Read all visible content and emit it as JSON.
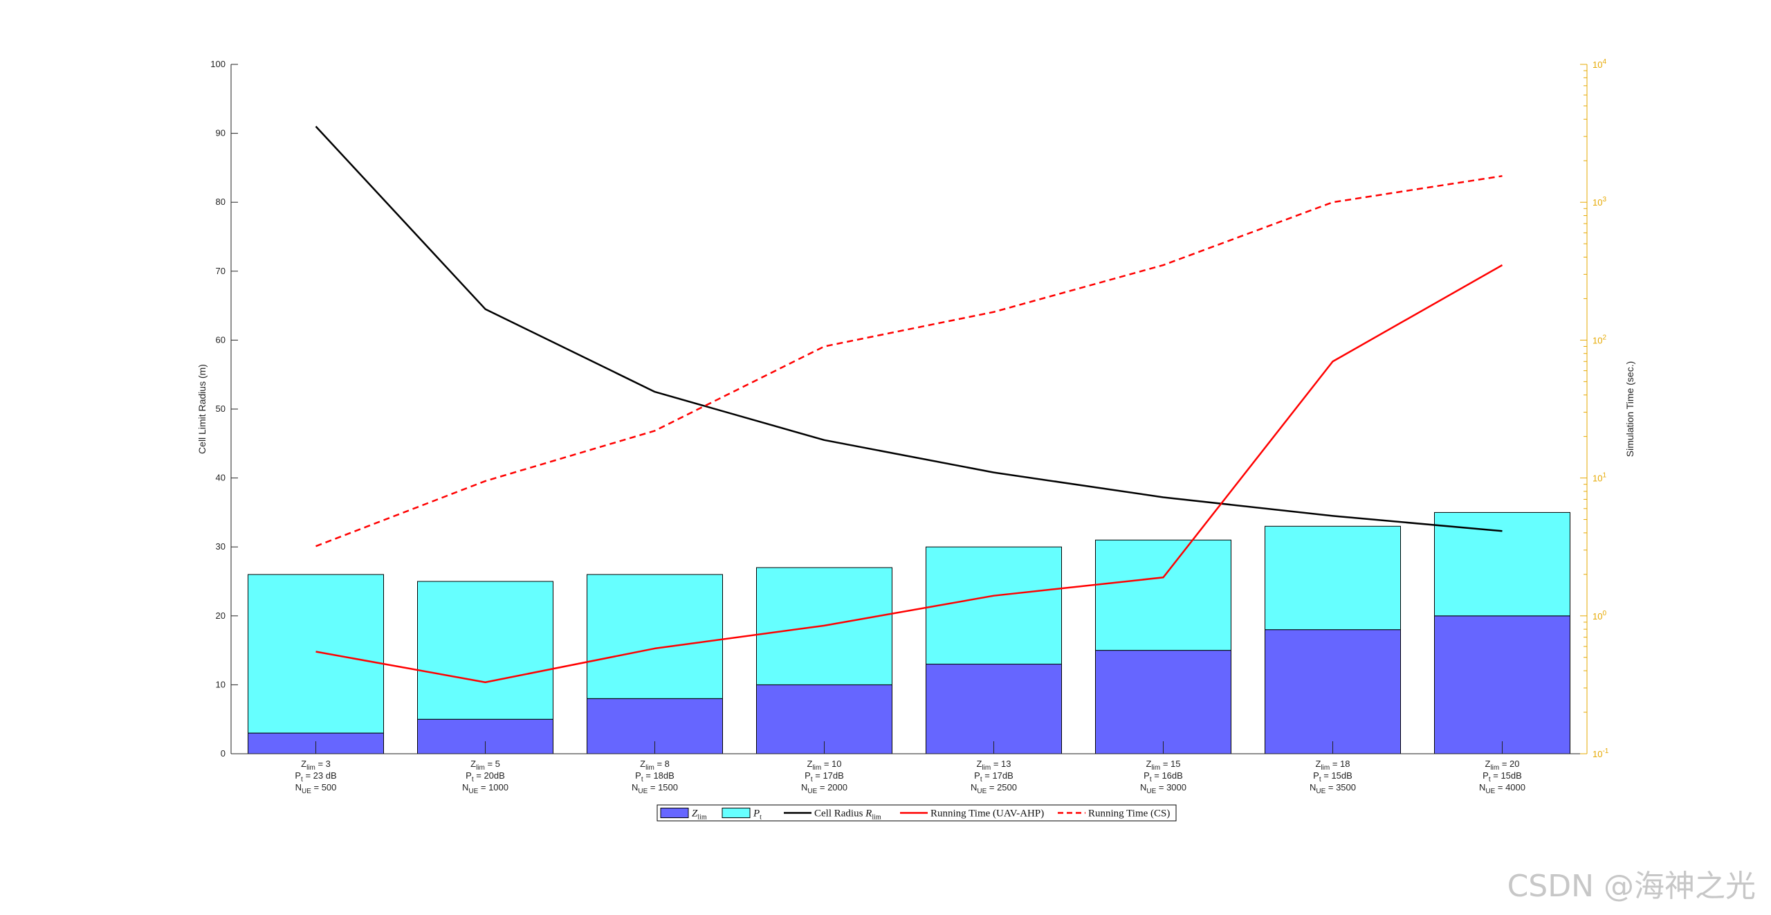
{
  "chart_data": {
    "type": "bar",
    "categories": [
      [
        "Z_lim = 3",
        "P_t = 23 dB",
        "N_UE = 500"
      ],
      [
        "Z_lim = 5",
        "P_t = 20dB",
        "N_UE = 1000"
      ],
      [
        "Z_lim = 8",
        "P_t = 18dB",
        "N_UE = 1500"
      ],
      [
        "Z_lim = 10",
        "P_t = 17dB",
        "N_UE = 2000"
      ],
      [
        "Z_lim = 13",
        "P_t = 17dB",
        "N_UE = 2500"
      ],
      [
        "Z_lim = 15",
        "P_t = 16dB",
        "N_UE = 3000"
      ],
      [
        "Z_lim = 18",
        "P_t = 15dB",
        "N_UE = 3500"
      ],
      [
        "Z_lim = 20",
        "P_t = 15dB",
        "N_UE = 4000"
      ]
    ],
    "category_lines": [
      {
        "lead": "Z",
        "sub": "lim",
        "rest": " = 3"
      },
      {
        "lead": "P",
        "sub": "t",
        "rest": " = 23 dB"
      },
      {
        "lead": "N",
        "sub": "UE",
        "rest": " = 500"
      }
    ],
    "bar_series": [
      {
        "name": "Z_lim",
        "color": "#6666ff",
        "values": [
          3,
          5,
          8,
          10,
          13,
          15,
          18,
          20
        ]
      },
      {
        "name": "P_t",
        "color": "#66ffff",
        "values": [
          23,
          20,
          18,
          17,
          17,
          16,
          15,
          15
        ]
      }
    ],
    "line_series": [
      {
        "name": "Cell Radius R_lim",
        "axis": "left",
        "color": "#000000",
        "dashed": false,
        "values": [
          91,
          64.5,
          52.5,
          45.5,
          40.8,
          37.2,
          34.5,
          32.3
        ]
      },
      {
        "name": "Running Time (UAV-AHP)",
        "axis": "right",
        "color": "#ff0000",
        "dashed": false,
        "values": [
          0.55,
          0.33,
          0.58,
          0.85,
          1.4,
          1.9,
          70,
          350
        ]
      },
      {
        "name": "Running Time (CS)",
        "axis": "right",
        "color": "#ff0000",
        "dashed": true,
        "values": [
          3.2,
          9.5,
          22,
          90,
          160,
          350,
          1000,
          1550
        ]
      }
    ],
    "ylabel_left": "Cell Limit Radius (m)",
    "ylabel_right": "Simulation Time (sec.)",
    "ylim_left": [
      0,
      100
    ],
    "yticks_left": [
      0,
      10,
      20,
      30,
      40,
      50,
      60,
      70,
      80,
      90,
      100
    ],
    "ylim_right": [
      0.1,
      10000
    ],
    "yscale_right": "log",
    "yticks_right_exponents": [
      -1,
      0,
      1,
      2,
      3,
      4
    ],
    "right_axis_color": "#e6a800",
    "legend_position": "bottom-center",
    "legend": [
      {
        "kind": "bar",
        "color": "#6666ff",
        "lead": "Z",
        "sub": "lim"
      },
      {
        "kind": "bar",
        "color": "#66ffff",
        "lead": "P",
        "sub": "t"
      },
      {
        "kind": "line",
        "color": "#000000",
        "dashed": false,
        "lead": "Cell Radius ",
        "italic": "R",
        "sub": "lim"
      },
      {
        "kind": "line",
        "color": "#ff0000",
        "dashed": false,
        "lead": "Running Time (UAV-AHP)"
      },
      {
        "kind": "line",
        "color": "#ff0000",
        "dashed": true,
        "lead": "Running Time (CS)"
      }
    ]
  },
  "watermark": "CSDN @海神之光"
}
